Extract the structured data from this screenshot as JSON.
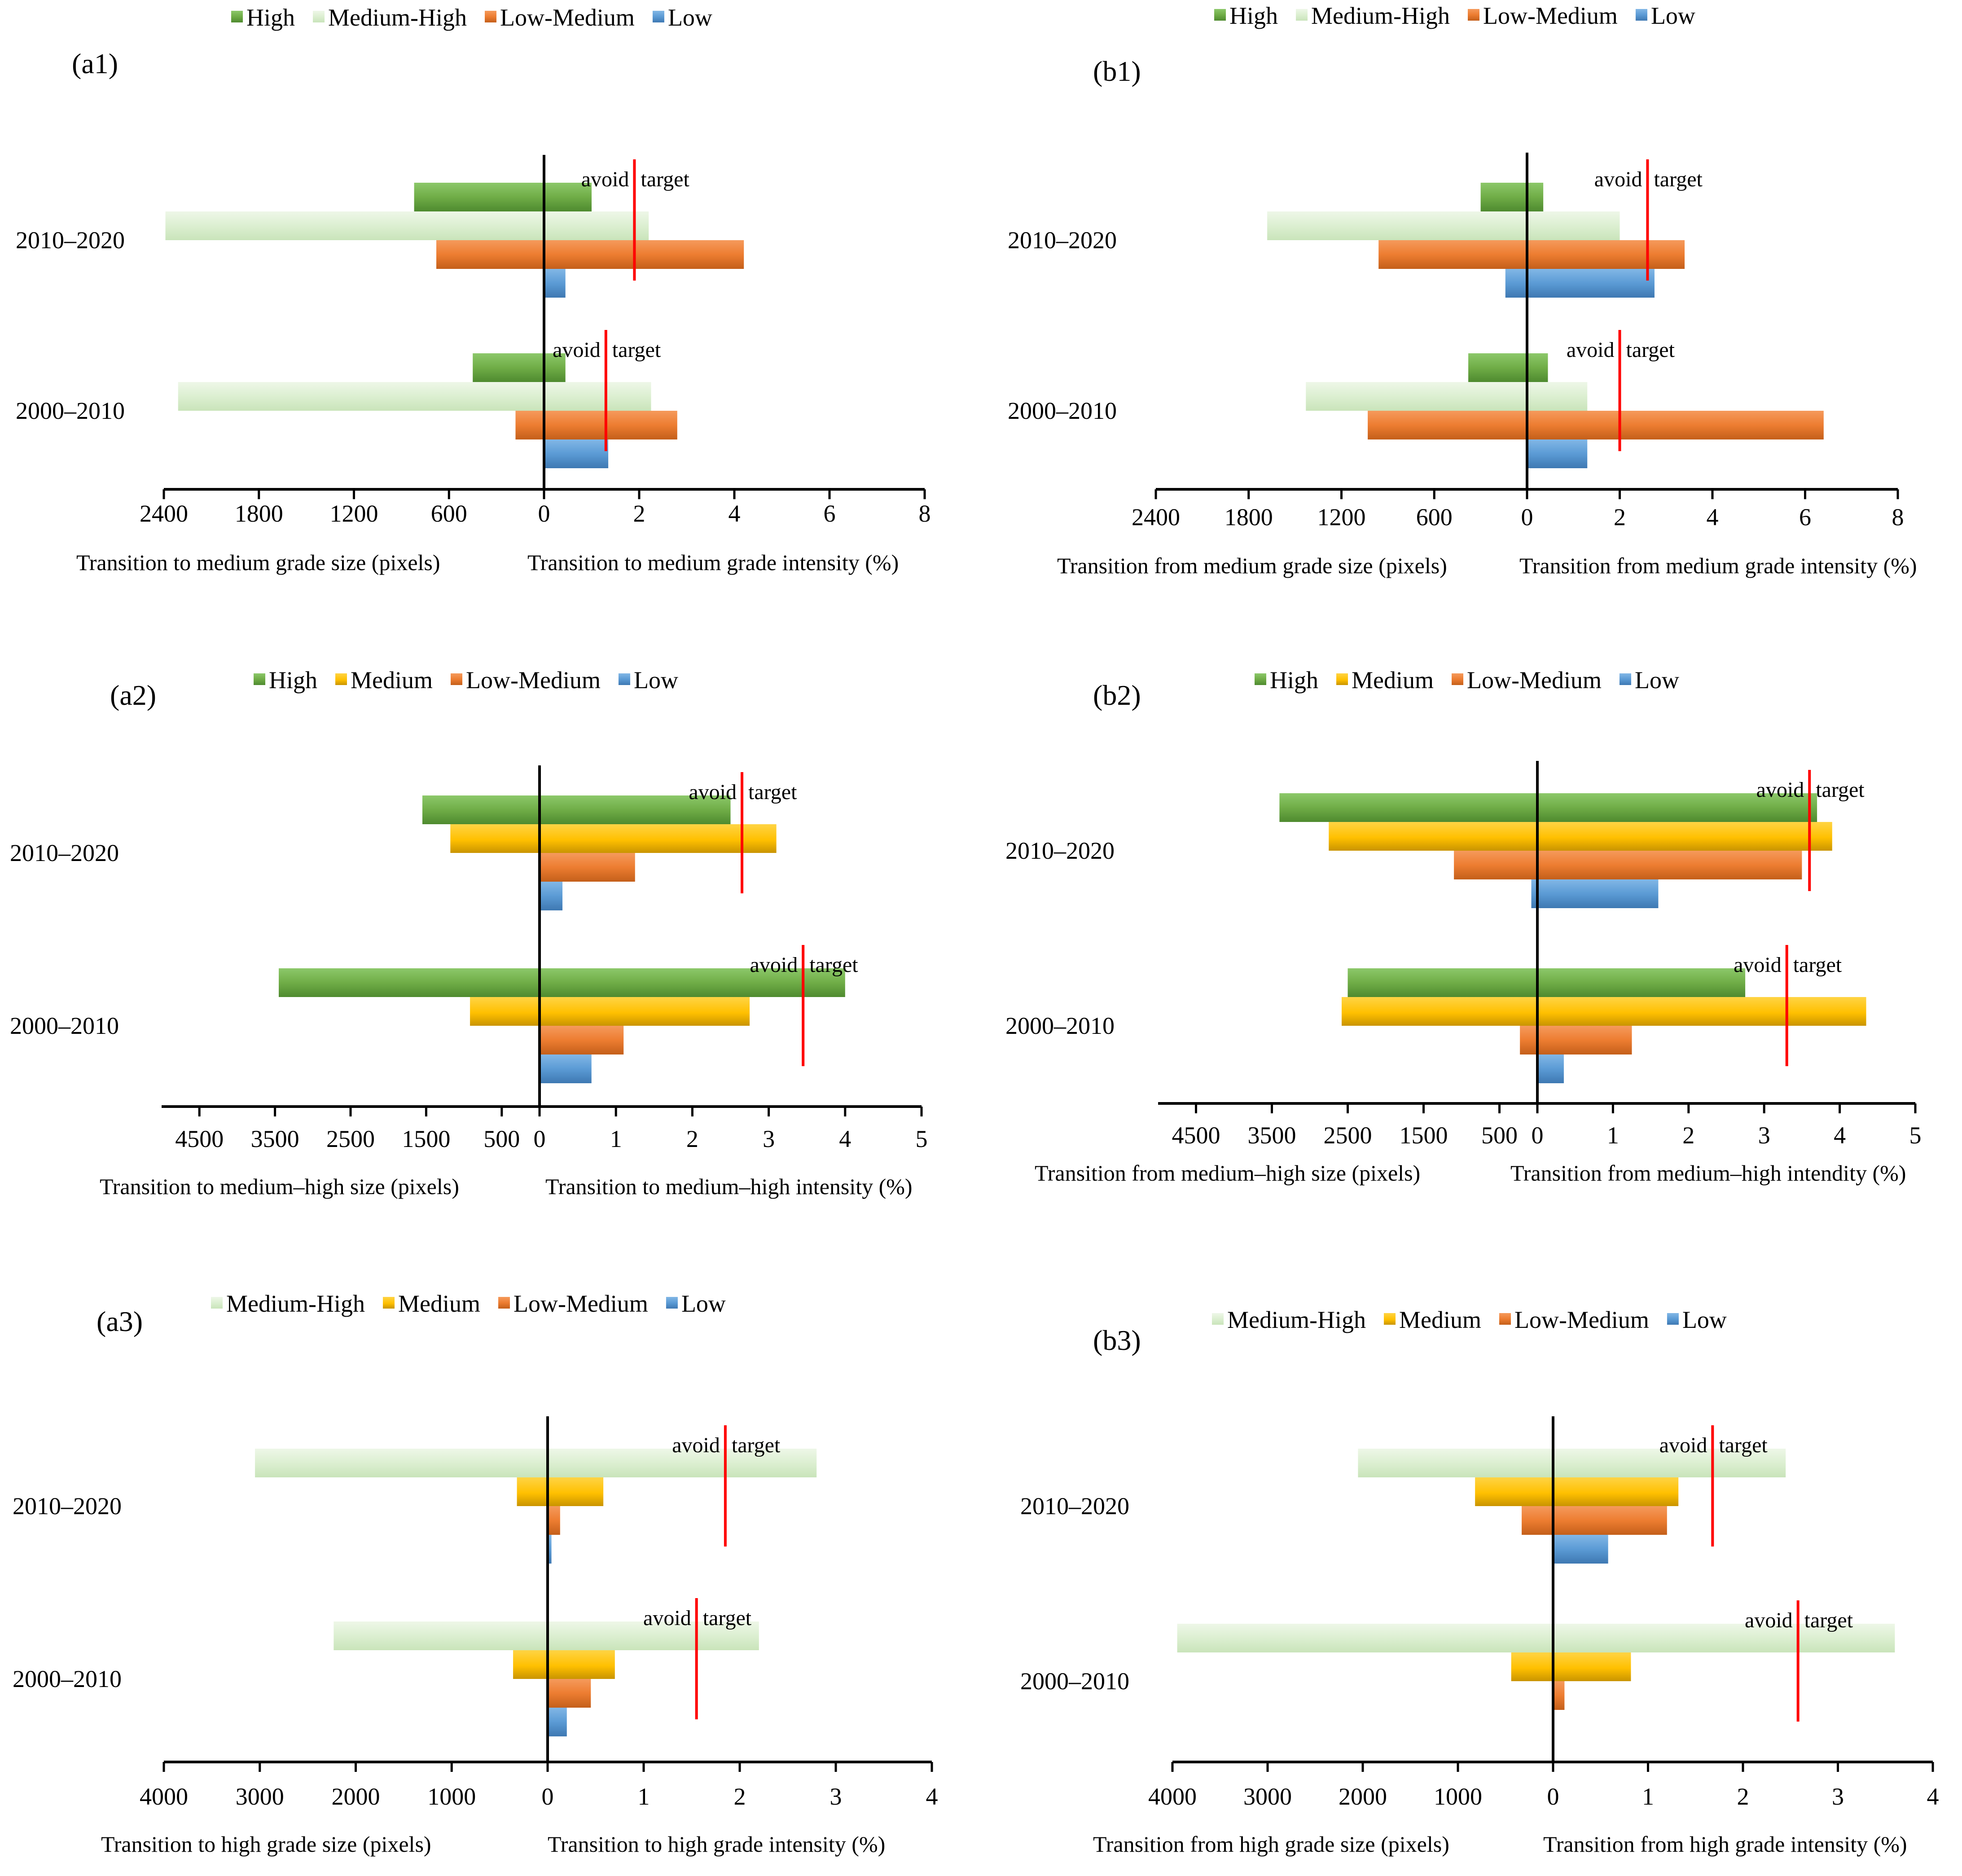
{
  "colors": {
    "High": "#70AD47",
    "Medium-High": "#E2F0D9",
    "Medium": "#FFC000",
    "Low-Medium": "#ED7D31",
    "Low": "#5B9BD5",
    "axis": "#000000",
    "target_line": "#FF0000"
  },
  "chart_data": [
    {
      "id": "a1",
      "label": "(a1)",
      "type": "bar",
      "legend": [
        "High",
        "Medium-High",
        "Low-Medium",
        "Low"
      ],
      "categories": [
        "2010–2020",
        "2000–2010"
      ],
      "size_axis": {
        "max": 2400,
        "ticks": [
          2400,
          1800,
          1200,
          600,
          0
        ],
        "tick_labels": [
          "2400",
          "1800",
          "1200",
          "600",
          ""
        ]
      },
      "intensity_axis": {
        "max": 8,
        "ticks": [
          0,
          2,
          4,
          6,
          8
        ],
        "tick_labels": [
          "0",
          "2",
          "4",
          "6",
          "8"
        ]
      },
      "xlabel_size": "Transition to medium grade size (pixels)",
      "xlabel_intensity": "Transition to medium grade intensity (%)",
      "series": [
        {
          "name": "High",
          "size": [
            820,
            450
          ],
          "intensity": [
            1.0,
            0.45
          ]
        },
        {
          "name": "Medium-High",
          "size": [
            2390,
            2310
          ],
          "intensity": [
            2.2,
            2.25
          ]
        },
        {
          "name": "Low-Medium",
          "size": [
            680,
            180
          ],
          "intensity": [
            4.2,
            2.8
          ]
        },
        {
          "name": "Low",
          "size": [
            0,
            0
          ],
          "intensity": [
            0.45,
            1.35
          ]
        }
      ],
      "uniform_intensity": [
        1.9,
        1.3
      ],
      "avoid_text": "avoid",
      "target_text": "target"
    },
    {
      "id": "b1",
      "label": "(b1)",
      "type": "bar",
      "legend": [
        "High",
        "Medium-High",
        "Low-Medium",
        "Low"
      ],
      "categories": [
        "2010–2020",
        "2000–2010"
      ],
      "size_axis": {
        "max": 2400,
        "ticks": [
          2400,
          1800,
          1200,
          600,
          0
        ],
        "tick_labels": [
          "2400",
          "1800",
          "1200",
          "600",
          ""
        ]
      },
      "intensity_axis": {
        "max": 8,
        "ticks": [
          0,
          2,
          4,
          6,
          8
        ],
        "tick_labels": [
          "0",
          "2",
          "4",
          "6",
          "8"
        ]
      },
      "xlabel_size": "Transition from medium grade size (pixels)",
      "xlabel_intensity": "Transition from medium grade intensity (%)",
      "series": [
        {
          "name": "High",
          "size": [
            300,
            380
          ],
          "intensity": [
            0.35,
            0.45
          ]
        },
        {
          "name": "Medium-High",
          "size": [
            1680,
            1430
          ],
          "intensity": [
            2.0,
            1.3
          ]
        },
        {
          "name": "Low-Medium",
          "size": [
            960,
            1030
          ],
          "intensity": [
            3.4,
            6.4
          ]
        },
        {
          "name": "Low",
          "size": [
            140,
            0
          ],
          "intensity": [
            2.75,
            1.3
          ]
        }
      ],
      "uniform_intensity": [
        2.6,
        2.0
      ],
      "avoid_text": "avoid",
      "target_text": "target"
    },
    {
      "id": "a2",
      "label": "(a2)",
      "type": "bar",
      "legend": [
        "High",
        "Medium",
        "Low-Medium",
        "Low"
      ],
      "categories": [
        "2010–2020",
        "2000–2010"
      ],
      "size_axis": {
        "max": 5000,
        "ticks": [
          4500,
          3500,
          2500,
          1500,
          500,
          0
        ],
        "tick_labels": [
          "4500",
          "3500",
          "2500",
          "1500",
          "500",
          ""
        ]
      },
      "intensity_axis": {
        "max": 5,
        "ticks": [
          0,
          1,
          2,
          3,
          4,
          5
        ],
        "tick_labels": [
          "0",
          "1",
          "2",
          "3",
          "4",
          "5"
        ]
      },
      "xlabel_size": "Transition to medium–high size (pixels)",
      "xlabel_intensity": "Transition to medium–high intensity (%)",
      "series": [
        {
          "name": "High",
          "size": [
            1550,
            3450
          ],
          "intensity": [
            2.5,
            4.0
          ]
        },
        {
          "name": "Medium",
          "size": [
            1180,
            920
          ],
          "intensity": [
            3.1,
            2.75
          ]
        },
        {
          "name": "Low-Medium",
          "size": [
            0,
            0
          ],
          "intensity": [
            1.25,
            1.1
          ]
        },
        {
          "name": "Low",
          "size": [
            0,
            0
          ],
          "intensity": [
            0.3,
            0.68
          ]
        }
      ],
      "uniform_intensity": [
        2.65,
        3.45
      ],
      "avoid_text": "avoid",
      "target_text": "target"
    },
    {
      "id": "b2",
      "label": "(b2)",
      "type": "bar",
      "legend": [
        "High",
        "Medium",
        "Low-Medium",
        "Low"
      ],
      "categories": [
        "2010–2020",
        "2000–2010"
      ],
      "size_axis": {
        "max": 5000,
        "ticks": [
          4500,
          3500,
          2500,
          1500,
          500,
          0
        ],
        "tick_labels": [
          "4500",
          "3500",
          "2500",
          "1500",
          "500",
          ""
        ]
      },
      "intensity_axis": {
        "max": 5,
        "ticks": [
          0,
          1,
          2,
          3,
          4,
          5
        ],
        "tick_labels": [
          "0",
          "1",
          "2",
          "3",
          "4",
          "5"
        ]
      },
      "xlabel_size": "Transition from medium–high size (pixels)",
      "xlabel_intensity": "Transition from medium–high intendity (%)",
      "series": [
        {
          "name": "High",
          "size": [
            3400,
            2500
          ],
          "intensity": [
            3.7,
            2.75
          ]
        },
        {
          "name": "Medium",
          "size": [
            2750,
            2580
          ],
          "intensity": [
            3.9,
            4.35
          ]
        },
        {
          "name": "Low-Medium",
          "size": [
            1100,
            230
          ],
          "intensity": [
            3.5,
            1.25
          ]
        },
        {
          "name": "Low",
          "size": [
            80,
            0
          ],
          "intensity": [
            1.6,
            0.35
          ]
        }
      ],
      "uniform_intensity": [
        3.6,
        3.3
      ],
      "avoid_text": "avoid",
      "target_text": "target"
    },
    {
      "id": "a3",
      "label": "(a3)",
      "type": "bar",
      "legend": [
        "Medium-High",
        "Medium",
        "Low-Medium",
        "Low"
      ],
      "categories": [
        "2010–2020",
        "2000–2010"
      ],
      "size_axis": {
        "max": 4000,
        "ticks": [
          4000,
          3000,
          2000,
          1000,
          0
        ],
        "tick_labels": [
          "4000",
          "3000",
          "2000",
          "1000",
          "0"
        ]
      },
      "intensity_axis": {
        "max": 4,
        "ticks": [
          0,
          1,
          2,
          3,
          4
        ],
        "tick_labels": [
          "",
          "1",
          "2",
          "3",
          "4"
        ]
      },
      "xlabel_size": "Transition to high grade size (pixels)",
      "xlabel_intensity": "Transition to high grade intensity (%)",
      "series": [
        {
          "name": "Medium-High",
          "size": [
            3050,
            2230
          ],
          "intensity": [
            2.8,
            2.2
          ]
        },
        {
          "name": "Medium",
          "size": [
            320,
            360
          ],
          "intensity": [
            0.58,
            0.7
          ]
        },
        {
          "name": "Low-Medium",
          "size": [
            0,
            0
          ],
          "intensity": [
            0.13,
            0.45
          ]
        },
        {
          "name": "Low",
          "size": [
            0,
            0
          ],
          "intensity": [
            0.04,
            0.2
          ]
        }
      ],
      "uniform_intensity": [
        1.85,
        1.55
      ],
      "avoid_text": "avoid",
      "target_text": "target"
    },
    {
      "id": "b3",
      "label": "(b3)",
      "type": "bar",
      "legend": [
        "Medium-High",
        "Medium",
        "Low-Medium",
        "Low"
      ],
      "categories": [
        "2010–2020",
        "2000–2010"
      ],
      "size_axis": {
        "max": 4000,
        "ticks": [
          4000,
          3000,
          2000,
          1000,
          0
        ],
        "tick_labels": [
          "4000",
          "3000",
          "2000",
          "1000",
          "0"
        ]
      },
      "intensity_axis": {
        "max": 4,
        "ticks": [
          0,
          1,
          2,
          3,
          4
        ],
        "tick_labels": [
          "",
          "1",
          "2",
          "3",
          "4"
        ]
      },
      "xlabel_size": "Transition from high grade size (pixels)",
      "xlabel_intensity": "Transition from high grade intensity (%)",
      "series": [
        {
          "name": "Medium-High",
          "size": [
            2050,
            3950
          ],
          "intensity": [
            2.45,
            3.6
          ]
        },
        {
          "name": "Medium",
          "size": [
            820,
            440
          ],
          "intensity": [
            1.32,
            0.82
          ]
        },
        {
          "name": "Low-Medium",
          "size": [
            330,
            0
          ],
          "intensity": [
            1.2,
            0.12
          ]
        },
        {
          "name": "Low",
          "size": [
            0,
            0
          ],
          "intensity": [
            0.58,
            0
          ]
        }
      ],
      "uniform_intensity": [
        1.68,
        2.58
      ],
      "avoid_text": "avoid",
      "target_text": "target"
    }
  ]
}
